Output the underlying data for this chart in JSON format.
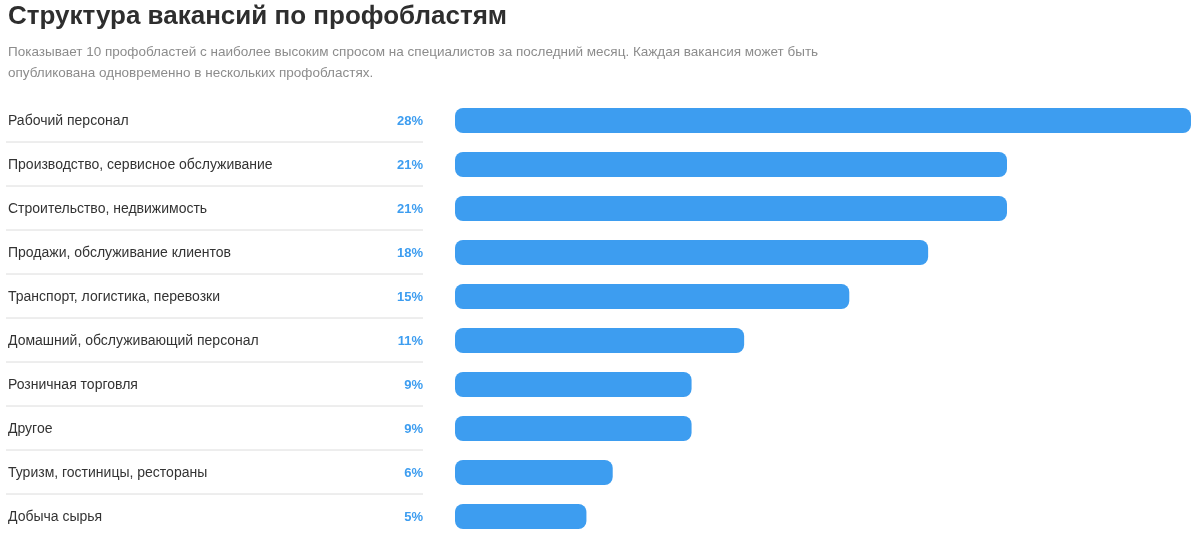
{
  "chart_data": {
    "type": "bar",
    "orientation": "horizontal",
    "title": "Структура вакансий по профобластям",
    "subtitle": "Показывает 10 профобластей с наиболее высоким спросом на специалистов за последний месяц. Каждая вакансия может быть опубликована одновременно в нескольких профобластях.",
    "categories": [
      "Рабочий персонал",
      "Производство, сервисное обслуживание",
      "Строительство, недвижимость",
      "Продажи, обслуживание клиентов",
      "Транспорт, логистика, перевозки",
      "Домашний, обслуживающий персонал",
      "Розничная торговля",
      "Другое",
      "Туризм, гостиницы, рестораны",
      "Добыча сырья"
    ],
    "values": [
      28,
      21,
      21,
      18,
      15,
      11,
      9,
      9,
      6,
      5
    ],
    "value_labels": [
      "28%",
      "21%",
      "21%",
      "18%",
      "15%",
      "11%",
      "9%",
      "9%",
      "6%",
      "5%"
    ],
    "color": "#3d9df0",
    "tick_labels": "y"
  }
}
